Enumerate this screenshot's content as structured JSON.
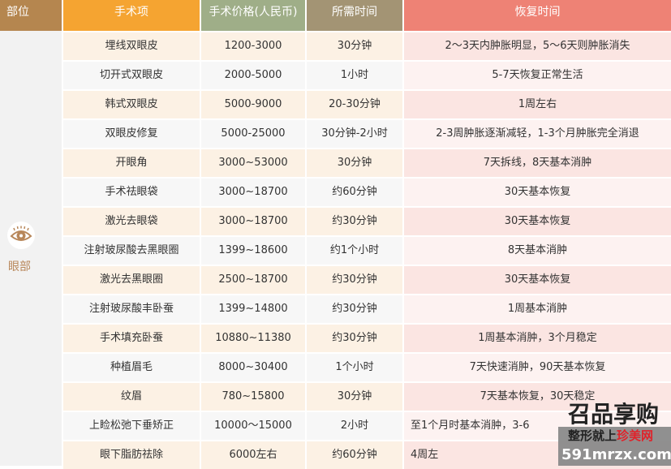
{
  "headers": [
    "部位",
    "手术项",
    "手术价格(人民币)",
    "所需时间",
    "恢复时间"
  ],
  "category": {
    "label": "眼部",
    "icon": "eye-icon"
  },
  "header_colors": {
    "part": "#b5864f",
    "item": "#f5a431",
    "price": "#9fae88",
    "time": "#a39474",
    "recovery": "#ee8275"
  },
  "rows": [
    [
      "埋线双眼皮",
      "1200-3000",
      "30分钟",
      "2～3天内肿胀明显，5～6天则肿胀消失"
    ],
    [
      "切开式双眼皮",
      "2000-5000",
      "1小时",
      "5-7天恢复正常生活"
    ],
    [
      "韩式双眼皮",
      "5000-9000",
      "20-30分钟",
      "1周左右"
    ],
    [
      "双眼皮修复",
      "5000-25000",
      "30分钟-2小时",
      "2-3周肿胀逐渐减轻，1-3个月肿胀完全消退"
    ],
    [
      "开眼角",
      "3000~53000",
      "30分钟",
      "7天拆线，8天基本消肿"
    ],
    [
      "手术祛眼袋",
      "3000~18700",
      "约60分钟",
      "30天基本恢复"
    ],
    [
      "激光去眼袋",
      "3000~18700",
      "约30分钟",
      "30天基本恢复"
    ],
    [
      "注射玻尿酸去黑眼圈",
      "1399~18600",
      "约1个小时",
      "8天基本消肿"
    ],
    [
      "激光去黑眼圈",
      "2500~18700",
      "约30分钟",
      "30天基本恢复"
    ],
    [
      "注射玻尿酸丰卧蚕",
      "1399~14800",
      "约30分钟",
      "1周基本消肿"
    ],
    [
      "手术填充卧蚕",
      "10880~11380",
      "约30分钟",
      "1周基本消肿，3个月稳定"
    ],
    [
      "种植眉毛",
      "8000~30400",
      "1个小时",
      "7天快速消肿，90天基本恢复"
    ],
    [
      "纹眉",
      "780~15800",
      "30分钟",
      "7天基本恢复，30天稳定"
    ],
    [
      "上睑松弛下垂矫正",
      "10000～15000",
      "2小时",
      "至1个月时基本消肿，3-6"
    ],
    [
      "眼下脂肪祛除",
      "6000左右",
      "约60分钟",
      "4周左"
    ]
  ],
  "watermark": {
    "top": "召品享购",
    "mid": "整形就上",
    "mid_red": "珍美网",
    "url": "591mrzx.com"
  }
}
